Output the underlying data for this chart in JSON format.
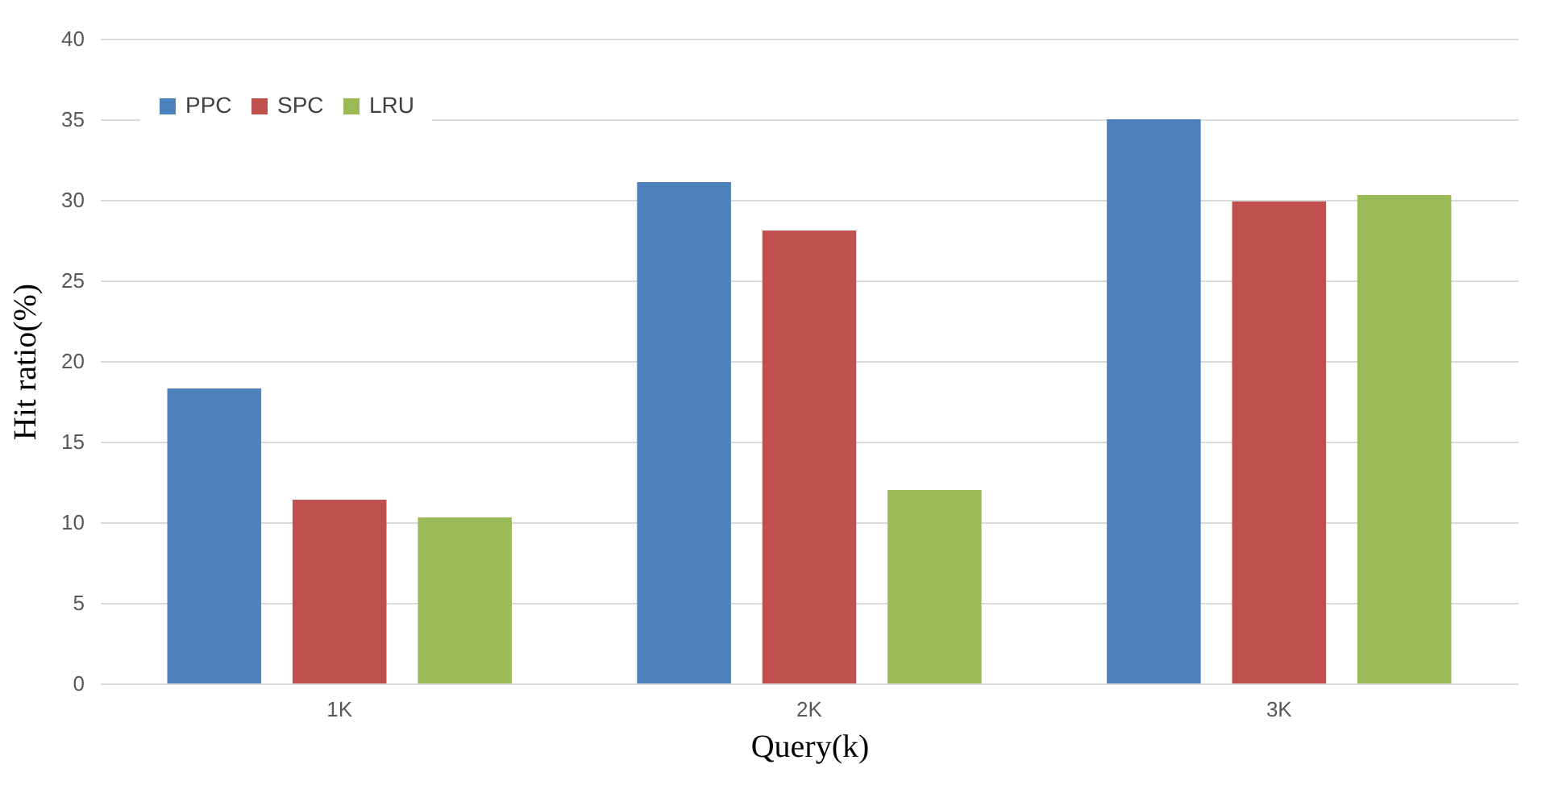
{
  "chart_data": {
    "type": "bar",
    "xlabel": "Query(k)",
    "ylabel": "Hit ratio(%)",
    "categories": [
      "1K",
      "2K",
      "3K"
    ],
    "series": [
      {
        "name": "PPC",
        "color": "#4f81bd",
        "values": [
          18.3,
          31.1,
          35.0
        ]
      },
      {
        "name": "SPC",
        "color": "#c0504d",
        "values": [
          11.4,
          28.1,
          29.9
        ]
      },
      {
        "name": "LRU",
        "color": "#9bbb59",
        "values": [
          10.3,
          12.0,
          30.3
        ]
      }
    ],
    "ylim": [
      0,
      40
    ],
    "yticks": [
      0,
      5,
      10,
      15,
      20,
      25,
      30,
      35,
      40
    ],
    "grid": "y",
    "legend": "top left"
  }
}
